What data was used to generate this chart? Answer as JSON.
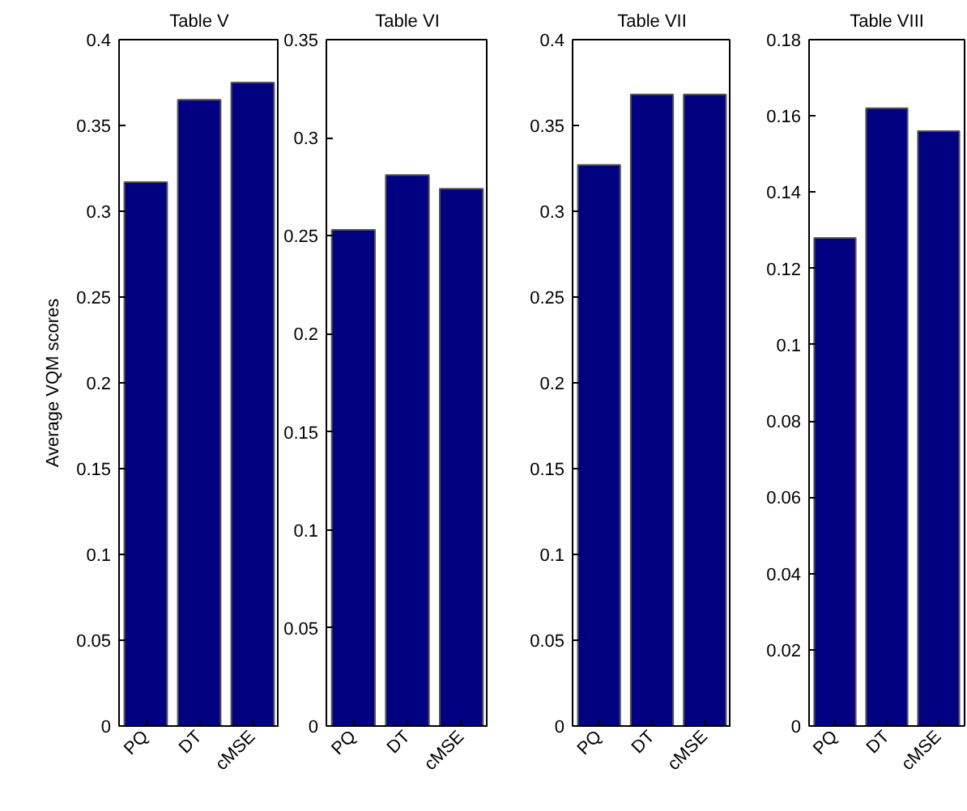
{
  "chart_data": [
    {
      "type": "bar",
      "title": "Table V",
      "ylabel": "Average VQM scores",
      "categories": [
        "PQ",
        "DT",
        "cMSE"
      ],
      "values": [
        0.317,
        0.365,
        0.375
      ],
      "color": "#000080",
      "ylim": [
        0,
        0.4
      ],
      "yticks": [
        0,
        0.05,
        0.1,
        0.15,
        0.2,
        0.25,
        0.3,
        0.35,
        0.4
      ]
    },
    {
      "type": "bar",
      "title": "Table VI",
      "categories": [
        "PQ",
        "DT",
        "cMSE"
      ],
      "values": [
        0.253,
        0.281,
        0.274
      ],
      "color": "#000080",
      "ylim": [
        0,
        0.35
      ],
      "yticks": [
        0,
        0.05,
        0.1,
        0.15,
        0.2,
        0.25,
        0.3,
        0.35
      ]
    },
    {
      "type": "bar",
      "title": "Table VII",
      "categories": [
        "PQ",
        "DT",
        "cMSE"
      ],
      "values": [
        0.327,
        0.368,
        0.368
      ],
      "color": "#000080",
      "ylim": [
        0,
        0.4
      ],
      "yticks": [
        0,
        0.05,
        0.1,
        0.15,
        0.2,
        0.25,
        0.3,
        0.35,
        0.4
      ]
    },
    {
      "type": "bar",
      "title": "Table VIII",
      "categories": [
        "PQ",
        "DT",
        "cMSE"
      ],
      "values": [
        0.128,
        0.162,
        0.156
      ],
      "color": "#000080",
      "ylim": [
        0,
        0.18
      ],
      "yticks": [
        0,
        0.02,
        0.04,
        0.06,
        0.08,
        0.1,
        0.12,
        0.14,
        0.16,
        0.18
      ]
    }
  ]
}
